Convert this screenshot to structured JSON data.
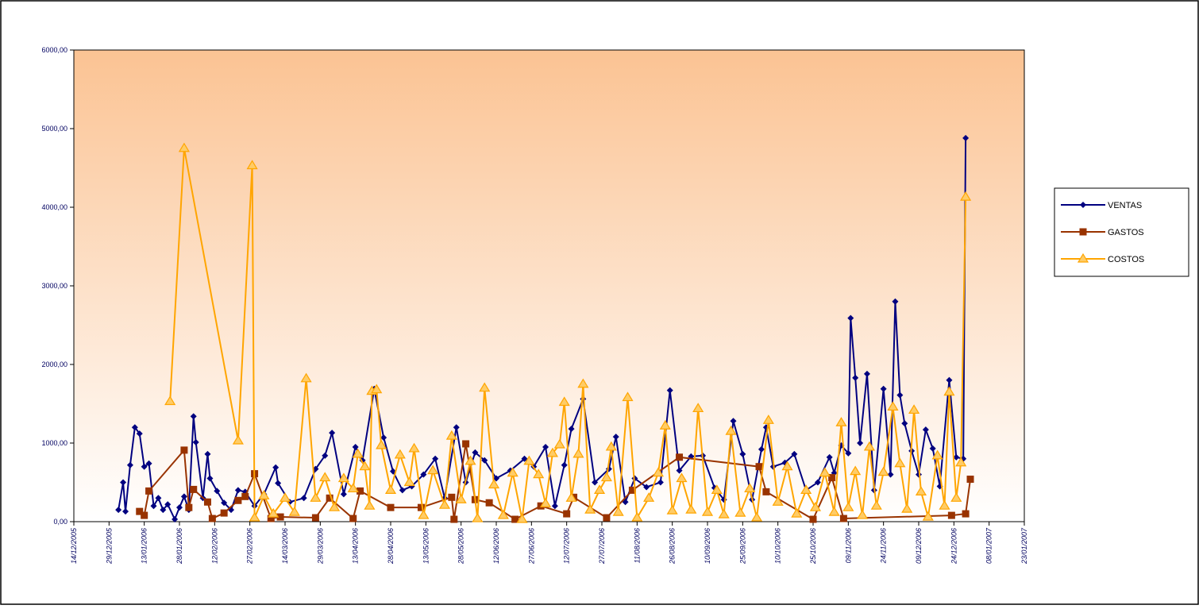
{
  "chart_data": {
    "type": "line",
    "xlim": [
      "2005-12-14",
      "2007-01-23"
    ],
    "xticks": [
      {
        "value": "2005-12-14",
        "label": "14/12/2005"
      },
      {
        "value": "2005-12-29",
        "label": "29/12/2005"
      },
      {
        "value": "2006-01-13",
        "label": "13/01/2006"
      },
      {
        "value": "2006-01-28",
        "label": "28/01/2006"
      },
      {
        "value": "2006-02-12",
        "label": "12/02/2006"
      },
      {
        "value": "2006-02-27",
        "label": "27/02/2006"
      },
      {
        "value": "2006-03-14",
        "label": "14/03/2006"
      },
      {
        "value": "2006-03-29",
        "label": "29/03/2006"
      },
      {
        "value": "2006-04-13",
        "label": "13/04/2006"
      },
      {
        "value": "2006-04-28",
        "label": "28/04/2006"
      },
      {
        "value": "2006-05-13",
        "label": "13/05/2006"
      },
      {
        "value": "2006-05-28",
        "label": "28/05/2006"
      },
      {
        "value": "2006-06-12",
        "label": "12/06/2006"
      },
      {
        "value": "2006-06-27",
        "label": "27/06/2006"
      },
      {
        "value": "2006-07-12",
        "label": "12/07/2006"
      },
      {
        "value": "2006-07-27",
        "label": "27/07/2006"
      },
      {
        "value": "2006-08-11",
        "label": "11/08/2006"
      },
      {
        "value": "2006-08-26",
        "label": "26/08/2006"
      },
      {
        "value": "2006-09-10",
        "label": "10/09/2006"
      },
      {
        "value": "2006-09-25",
        "label": "25/09/2006"
      },
      {
        "value": "2006-10-10",
        "label": "10/10/2006"
      },
      {
        "value": "2006-10-25",
        "label": "25/10/2006"
      },
      {
        "value": "2006-11-09",
        "label": "09/11/2006"
      },
      {
        "value": "2006-11-24",
        "label": "24/11/2006"
      },
      {
        "value": "2006-12-09",
        "label": "09/12/2006"
      },
      {
        "value": "2006-12-24",
        "label": "24/12/2006"
      },
      {
        "value": "2007-01-08",
        "label": "08/01/2007"
      },
      {
        "value": "2007-01-23",
        "label": "23/01/2007"
      }
    ],
    "ylim": [
      0,
      6000
    ],
    "yticks": [
      {
        "value": 0,
        "label": "0,00"
      },
      {
        "value": 1000,
        "label": "1000,00"
      },
      {
        "value": 2000,
        "label": "2000,00"
      },
      {
        "value": 3000,
        "label": "3000,00"
      },
      {
        "value": 4000,
        "label": "4000,00"
      },
      {
        "value": 5000,
        "label": "5000,00"
      },
      {
        "value": 6000,
        "label": "6000,00"
      }
    ],
    "legend": "right",
    "series": [
      {
        "name": "VENTAS",
        "color": "#000080",
        "marker": "diamond",
        "x": [
          "2006-01-02",
          "2006-01-04",
          "2006-01-05",
          "2006-01-07",
          "2006-01-09",
          "2006-01-11",
          "2006-01-13",
          "2006-01-15",
          "2006-01-17",
          "2006-01-19",
          "2006-01-21",
          "2006-01-23",
          "2006-01-26",
          "2006-01-28",
          "2006-01-30",
          "2006-02-01",
          "2006-02-03",
          "2006-02-04",
          "2006-02-07",
          "2006-02-09",
          "2006-02-10",
          "2006-02-13",
          "2006-02-16",
          "2006-02-19",
          "2006-02-22",
          "2006-02-25",
          "2006-03-01",
          "2006-03-05",
          "2006-03-10",
          "2006-03-11",
          "2006-03-16",
          "2006-03-22",
          "2006-03-27",
          "2006-03-31",
          "2006-04-03",
          "2006-04-08",
          "2006-04-13",
          "2006-04-16",
          "2006-04-21",
          "2006-04-25",
          "2006-04-29",
          "2006-05-03",
          "2006-05-07",
          "2006-05-12",
          "2006-05-17",
          "2006-05-21",
          "2006-05-26",
          "2006-05-30",
          "2006-06-03",
          "2006-06-07",
          "2006-06-12",
          "2006-06-18",
          "2006-06-24",
          "2006-06-28",
          "2006-07-03",
          "2006-07-07",
          "2006-07-11",
          "2006-07-14",
          "2006-07-19",
          "2006-07-24",
          "2006-07-30",
          "2006-08-02",
          "2006-08-06",
          "2006-08-10",
          "2006-08-15",
          "2006-08-21",
          "2006-08-25",
          "2006-08-29",
          "2006-09-03",
          "2006-09-08",
          "2006-09-13",
          "2006-09-17",
          "2006-09-21",
          "2006-09-25",
          "2006-09-29",
          "2006-10-03",
          "2006-10-05",
          "2006-10-08",
          "2006-10-13",
          "2006-10-17",
          "2006-10-22",
          "2006-10-27",
          "2006-11-01",
          "2006-11-03",
          "2006-11-06",
          "2006-11-09",
          "2006-11-10",
          "2006-11-12",
          "2006-11-14",
          "2006-11-17",
          "2006-11-20",
          "2006-11-24",
          "2006-11-27",
          "2006-11-29",
          "2006-12-01",
          "2006-12-03",
          "2006-12-06",
          "2006-12-09",
          "2006-12-12",
          "2006-12-15",
          "2006-12-18",
          "2006-12-22",
          "2006-12-25",
          "2006-12-28",
          "2006-12-29"
        ],
        "values": [
          150,
          500,
          130,
          720,
          1200,
          1120,
          700,
          740,
          200,
          300,
          150,
          220,
          30,
          180,
          320,
          150,
          1340,
          1010,
          300,
          860,
          550,
          390,
          240,
          150,
          400,
          380,
          200,
          350,
          690,
          490,
          250,
          300,
          670,
          840,
          1130,
          350,
          950,
          780,
          1690,
          1070,
          640,
          400,
          450,
          600,
          800,
          300,
          1200,
          500,
          880,
          780,
          550,
          650,
          800,
          700,
          950,
          200,
          720,
          1180,
          1560,
          500,
          670,
          1080,
          250,
          550,
          440,
          500,
          1670,
          650,
          830,
          840,
          430,
          280,
          1280,
          860,
          280,
          920,
          1200,
          700,
          750,
          860,
          400,
          500,
          820,
          620,
          970,
          870,
          2590,
          1830,
          1000,
          1880,
          400,
          1690,
          600,
          2800,
          1610,
          1250,
          900,
          600,
          1170,
          930,
          450,
          1800,
          820,
          800,
          4880
        ]
      },
      {
        "name": "GASTOS",
        "color": "#993300",
        "marker": "square",
        "x": [
          "2006-01-11",
          "2006-01-13",
          "2006-01-15",
          "2006-01-30",
          "2006-02-01",
          "2006-02-03",
          "2006-02-09",
          "2006-02-11",
          "2006-02-16",
          "2006-02-22",
          "2006-02-25",
          "2006-03-01",
          "2006-03-08",
          "2006-03-12",
          "2006-03-27",
          "2006-04-02",
          "2006-04-12",
          "2006-04-15",
          "2006-04-28",
          "2006-05-11",
          "2006-05-24",
          "2006-05-25",
          "2006-05-30",
          "2006-06-03",
          "2006-06-09",
          "2006-06-20",
          "2006-07-01",
          "2006-07-12",
          "2006-07-15",
          "2006-07-29",
          "2006-08-09",
          "2006-08-29",
          "2006-10-02",
          "2006-10-05",
          "2006-10-25",
          "2006-11-02",
          "2006-11-07",
          "2006-12-23",
          "2006-12-29",
          "2006-12-31"
        ],
        "values": [
          130,
          80,
          390,
          910,
          180,
          410,
          250,
          40,
          110,
          270,
          320,
          610,
          40,
          60,
          50,
          300,
          40,
          390,
          180,
          180,
          310,
          30,
          990,
          280,
          240,
          30,
          200,
          100,
          310,
          50,
          400,
          820,
          700,
          380,
          30,
          560,
          40,
          80,
          100,
          540
        ]
      },
      {
        "name": "COSTOS",
        "color": "#ffa500",
        "marker": "triangle",
        "x": [
          "2006-01-24",
          "2006-01-30",
          "2006-02-22",
          "2006-02-28",
          "2006-03-01",
          "2006-03-05",
          "2006-03-09",
          "2006-03-14",
          "2006-03-18",
          "2006-03-23",
          "2006-03-27",
          "2006-03-31",
          "2006-04-04",
          "2006-04-08",
          "2006-04-12",
          "2006-04-14",
          "2006-04-17",
          "2006-04-19",
          "2006-04-20",
          "2006-04-22",
          "2006-04-24",
          "2006-04-28",
          "2006-05-02",
          "2006-05-06",
          "2006-05-08",
          "2006-05-12",
          "2006-05-16",
          "2006-05-21",
          "2006-05-24",
          "2006-05-28",
          "2006-06-01",
          "2006-06-04",
          "2006-06-07",
          "2006-06-11",
          "2006-06-15",
          "2006-06-19",
          "2006-06-23",
          "2006-06-26",
          "2006-06-30",
          "2006-07-03",
          "2006-07-06",
          "2006-07-09",
          "2006-07-11",
          "2006-07-14",
          "2006-07-17",
          "2006-07-19",
          "2006-07-22",
          "2006-07-26",
          "2006-07-29",
          "2006-07-31",
          "2006-08-03",
          "2006-08-07",
          "2006-08-11",
          "2006-08-16",
          "2006-08-20",
          "2006-08-23",
          "2006-08-26",
          "2006-08-30",
          "2006-09-03",
          "2006-09-06",
          "2006-09-10",
          "2006-09-14",
          "2006-09-17",
          "2006-09-20",
          "2006-09-24",
          "2006-09-28",
          "2006-10-01",
          "2006-10-06",
          "2006-10-10",
          "2006-10-14",
          "2006-10-18",
          "2006-10-22",
          "2006-10-26",
          "2006-10-30",
          "2006-11-03",
          "2006-11-06",
          "2006-11-09",
          "2006-11-12",
          "2006-11-15",
          "2006-11-18",
          "2006-11-21",
          "2006-11-24",
          "2006-11-28",
          "2006-12-01",
          "2006-12-04",
          "2006-12-07",
          "2006-12-10",
          "2006-12-13",
          "2006-12-17",
          "2006-12-20",
          "2006-12-22",
          "2006-12-25",
          "2006-12-27",
          "2006-12-29"
        ],
        "values": [
          1530,
          4750,
          1030,
          4530,
          50,
          330,
          100,
          300,
          120,
          1820,
          300,
          560,
          180,
          550,
          420,
          860,
          700,
          200,
          1660,
          1680,
          970,
          400,
          850,
          500,
          930,
          80,
          650,
          210,
          1090,
          280,
          770,
          40,
          1700,
          470,
          80,
          620,
          30,
          770,
          600,
          230,
          870,
          980,
          1520,
          300,
          860,
          1750,
          150,
          400,
          560,
          950,
          120,
          1580,
          50,
          300,
          620,
          1220,
          140,
          550,
          150,
          1440,
          120,
          400,
          90,
          1150,
          110,
          420,
          50,
          1290,
          250,
          700,
          100,
          400,
          180,
          620,
          120,
          1260,
          180,
          640,
          80,
          950,
          200,
          630,
          1460,
          740,
          160,
          1420,
          380,
          60,
          840,
          200,
          1650,
          300,
          750,
          4130
        ]
      }
    ]
  }
}
